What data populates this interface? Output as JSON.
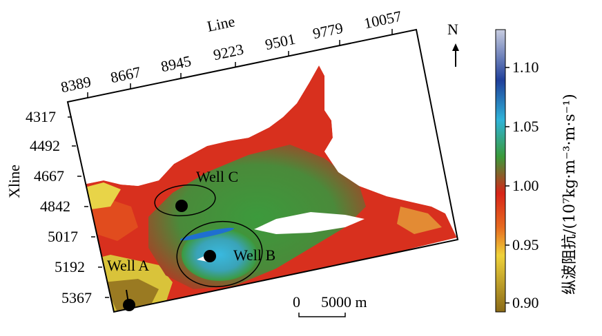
{
  "map": {
    "line_axis": {
      "title": "Line",
      "ticks": [
        "8389",
        "8667",
        "8945",
        "9223",
        "9501",
        "9779",
        "10057"
      ]
    },
    "xline_axis": {
      "title": "Xline",
      "ticks": [
        "4317",
        "4492",
        "4667",
        "4842",
        "5017",
        "5192",
        "5367"
      ]
    },
    "wells": [
      {
        "name": "Well C"
      },
      {
        "name": "Well B"
      },
      {
        "name": "Well A"
      }
    ],
    "north_arrow": {
      "label": "N",
      "icon": "north-arrow-icon"
    },
    "scale_bar": {
      "start_label": "0",
      "end_label": "5000 m"
    }
  },
  "colorbar": {
    "title": "纵波阻抗/(10⁷kg·m⁻³·m·s⁻¹)",
    "ticks": [
      "1.10",
      "1.05",
      "1.00",
      "0.95",
      "0.90"
    ],
    "colors": [
      "#c8cde0",
      "#1f3f9a",
      "#2fb3d8",
      "#3a9a3a",
      "#d82418",
      "#efd23a",
      "#8a6a18"
    ]
  }
}
